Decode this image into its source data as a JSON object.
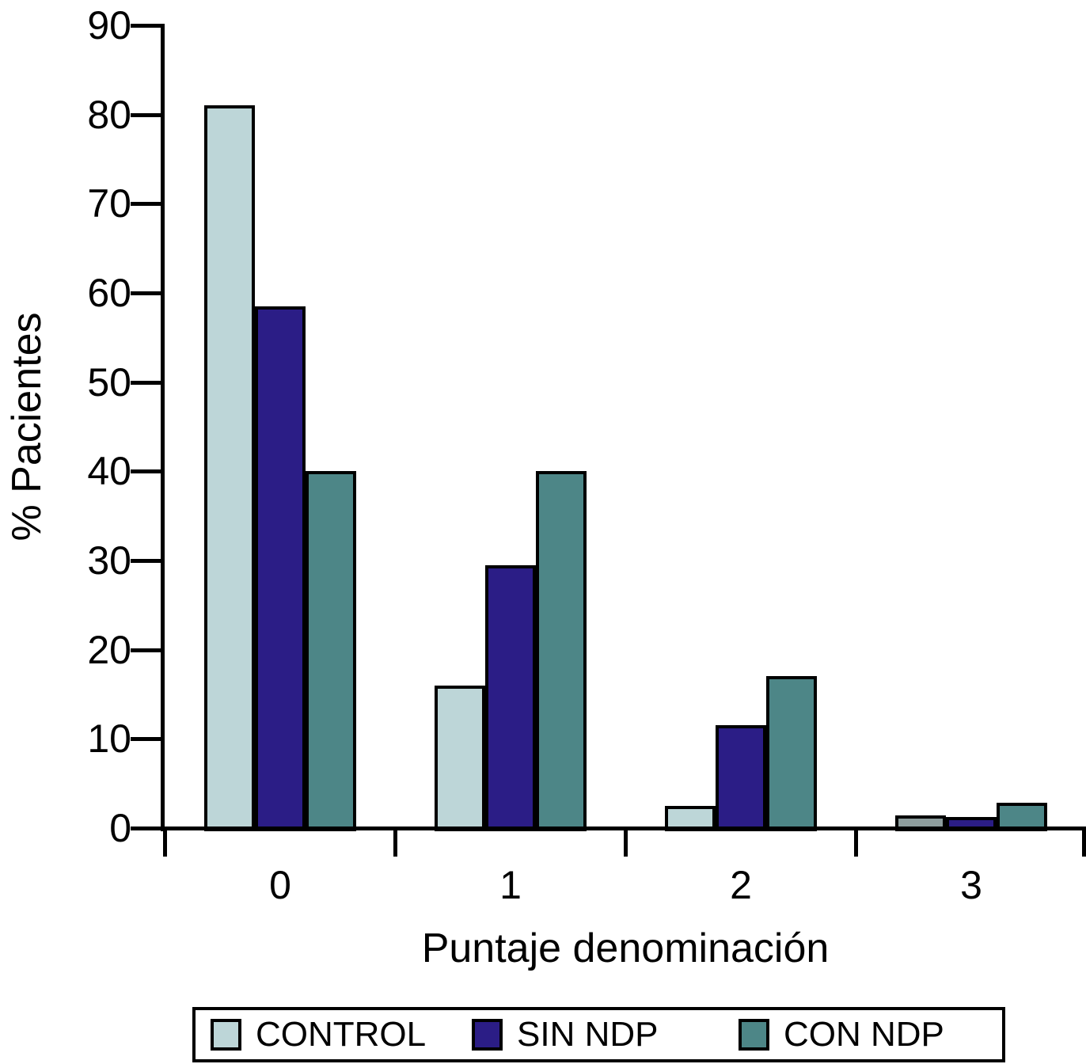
{
  "chart_data": {
    "type": "bar",
    "title": "",
    "xlabel": "Puntaje denominación",
    "ylabel": "% Pacientes",
    "categories": [
      "0",
      "1",
      "2",
      "3"
    ],
    "series": [
      {
        "name": "CONTROL",
        "color": "#bdd6d8",
        "values": [
          81,
          16,
          2.5,
          1.4
        ]
      },
      {
        "name": "SIN NDP",
        "color": "#2b1d86",
        "values": [
          58.5,
          29.5,
          11.5,
          1.2
        ]
      },
      {
        "name": "CON NDP",
        "color": "#4d8687",
        "values": [
          40,
          40,
          17,
          2.8
        ]
      }
    ],
    "bar_overrides": [
      {
        "series": "CONTROL",
        "category": "3",
        "color": "#8d9d9d"
      }
    ],
    "ylim": [
      0,
      90
    ],
    "yticks": [
      0,
      10,
      20,
      30,
      40,
      50,
      60,
      70,
      80,
      90
    ],
    "grid": false,
    "legend_position": "bottom"
  },
  "colors": {
    "axis": "#000000",
    "text": "#000000",
    "background": "#ffffff"
  }
}
